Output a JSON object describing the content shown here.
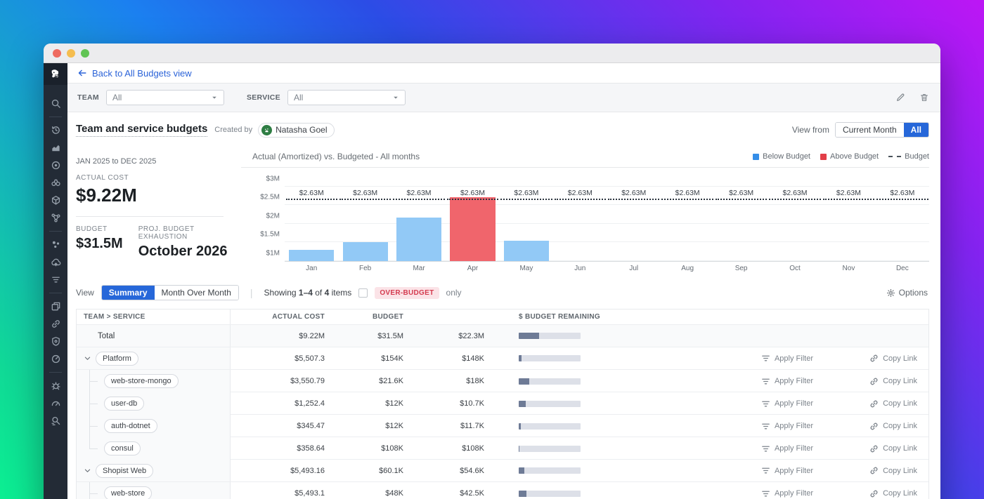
{
  "nav": {
    "back_label": "Back to All Budgets view"
  },
  "filters": {
    "team_label": "TEAM",
    "team_value": "All",
    "service_label": "SERVICE",
    "service_value": "All"
  },
  "header": {
    "title": "Team and service budgets",
    "created_by_label": "Created by",
    "creator": "Natasha Goel",
    "view_from_label": "View from",
    "view_options": [
      "Current Month",
      "All"
    ],
    "view_selected": "All"
  },
  "stats": {
    "period": "JAN 2025 to DEC 2025",
    "actual_cost_label": "ACTUAL COST",
    "actual_cost": "$9.22M",
    "budget_label": "BUDGET",
    "budget": "$31.5M",
    "exhaustion_label": "PROJ. BUDGET EXHAUSTION",
    "exhaustion": "October 2026"
  },
  "chart_data": {
    "type": "bar",
    "title": "Actual (Amortized) vs. Budgeted - All months",
    "categories": [
      "Jan",
      "Feb",
      "Mar",
      "Apr",
      "May",
      "Jun",
      "Jul",
      "Aug",
      "Sep",
      "Oct",
      "Nov",
      "Dec"
    ],
    "series": [
      {
        "name": "Actual (Amortized)",
        "unit": "$M",
        "values": [
          1.3,
          1.5,
          2.17,
          2.72,
          1.54,
          null,
          null,
          null,
          null,
          null,
          null,
          null
        ]
      }
    ],
    "budget_line": {
      "value": 2.63,
      "label": "$2.63M"
    },
    "ylim": [
      1,
      3.2
    ],
    "yticks": [
      {
        "v": 1,
        "label": "$1M"
      },
      {
        "v": 1.5,
        "label": "$1.5M"
      },
      {
        "v": 2,
        "label": "$2M"
      },
      {
        "v": 2.5,
        "label": "$2.5M"
      },
      {
        "v": 3,
        "label": "$3M"
      }
    ],
    "legend": [
      {
        "label": "Below Budget",
        "type": "square",
        "color": "#358ee8"
      },
      {
        "label": "Above Budget",
        "type": "square",
        "color": "#e23e48"
      },
      {
        "label": "Budget",
        "type": "dashed"
      }
    ],
    "colors": {
      "below": "#92c9f6",
      "above": "#f0656c"
    },
    "grid": true,
    "legend_position": "top-right"
  },
  "view_controls": {
    "view_label": "View",
    "tabs": [
      "Summary",
      "Month Over Month"
    ],
    "selected_tab": "Summary",
    "showing_prefix": "Showing ",
    "showing_range": "1–4",
    "showing_mid": " of ",
    "showing_count": "4",
    "showing_suffix": " items",
    "overbudget_badge": "OVER-BUDGET",
    "only_label": "only",
    "options_label": "Options"
  },
  "table": {
    "columns": [
      "TEAM > SERVICE",
      "ACTUAL COST",
      "BUDGET",
      "$ BUDGET REMAINING"
    ],
    "apply_filter_label": "Apply Filter",
    "copy_link_label": "Copy Link",
    "rows": [
      {
        "type": "total",
        "name": "Total",
        "actual": "$9.22M",
        "budget": "$31.5M",
        "remaining": "$22.3M",
        "fill_pct": 33,
        "actions": false
      },
      {
        "type": "team",
        "name": "Platform",
        "actual": "$5,507.3",
        "budget": "$154K",
        "remaining": "$148K",
        "fill_pct": 4,
        "actions": true
      },
      {
        "type": "service",
        "name": "web-store-mongo",
        "actual": "$3,550.79",
        "budget": "$21.6K",
        "remaining": "$18K",
        "fill_pct": 17,
        "actions": true
      },
      {
        "type": "service",
        "name": "user-db",
        "actual": "$1,252.4",
        "budget": "$12K",
        "remaining": "$10.7K",
        "fill_pct": 11,
        "actions": true
      },
      {
        "type": "service",
        "name": "auth-dotnet",
        "actual": "$345.47",
        "budget": "$12K",
        "remaining": "$11.7K",
        "fill_pct": 3,
        "actions": true
      },
      {
        "type": "service",
        "name": "consul",
        "actual": "$358.64",
        "budget": "$108K",
        "remaining": "$108K",
        "fill_pct": 1,
        "actions": true,
        "last": true
      },
      {
        "type": "team",
        "name": "Shopist Web",
        "actual": "$5,493.16",
        "budget": "$60.1K",
        "remaining": "$54.6K",
        "fill_pct": 9,
        "actions": true
      },
      {
        "type": "service",
        "name": "web-store",
        "actual": "$5,493.1",
        "budget": "$48K",
        "remaining": "$42.5K",
        "fill_pct": 13,
        "actions": true
      }
    ]
  },
  "sidebar": {
    "groups": [
      [
        "search"
      ],
      [
        "history",
        "metrics",
        "apm",
        "watchdog",
        "catalog",
        "service-map"
      ],
      [
        "processes",
        "cloud",
        "logs"
      ],
      [
        "dashboards",
        "integrations",
        "security",
        "synthetics"
      ],
      [
        "bug",
        "monitors",
        "audit"
      ]
    ],
    "bottom_icon": "paw"
  },
  "colors": {
    "accent_blue": "#2667d9",
    "below_budget": "#92c9f6",
    "above_budget": "#f0656c",
    "legend_blue": "#358ee8",
    "legend_red": "#e23e48"
  }
}
